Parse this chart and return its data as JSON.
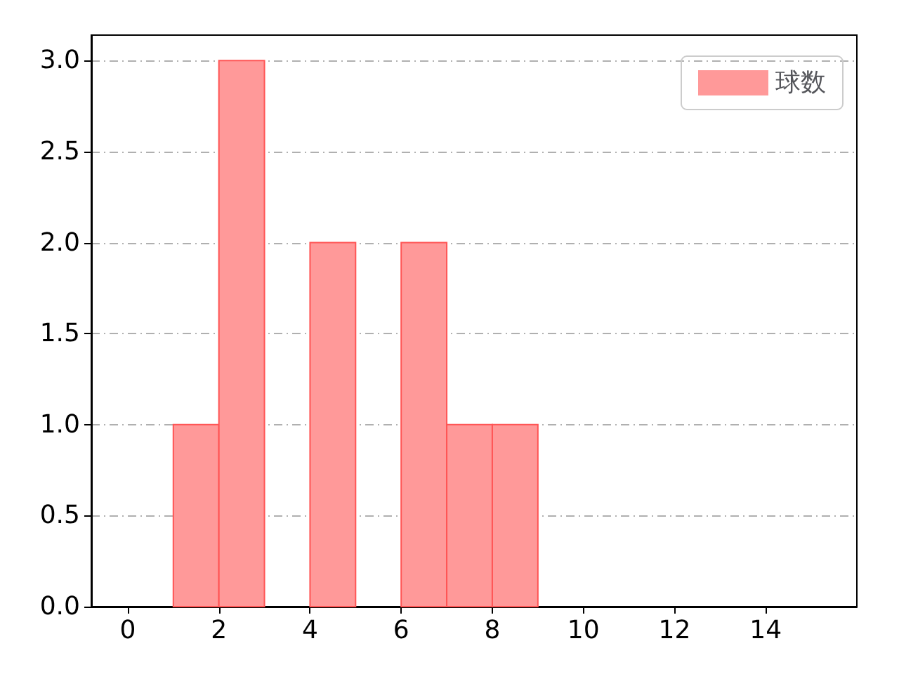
{
  "chart_data": {
    "type": "histogram",
    "bins": [
      1,
      2,
      3,
      4,
      5,
      6,
      7,
      8,
      9
    ],
    "series": [
      {
        "name": "球数",
        "color": "#ff9999",
        "values": [
          1,
          3,
          0,
          2,
          0,
          2,
          1,
          1
        ]
      }
    ],
    "xlim": [
      -0.8,
      16
    ],
    "xticks": [
      0,
      2,
      4,
      6,
      8,
      10,
      12,
      14
    ],
    "ylim": [
      0,
      3.14
    ],
    "yticks": [
      {
        "value": 0,
        "label": "0.0"
      },
      {
        "value": 0.5,
        "label": "0.5"
      },
      {
        "value": 1,
        "label": "1.0"
      },
      {
        "value": 1.5,
        "label": "1.5"
      },
      {
        "value": 2,
        "label": "2.0"
      },
      {
        "value": 2.5,
        "label": "2.5"
      },
      {
        "value": 3,
        "label": "3.0"
      }
    ],
    "grid": "y",
    "legend": "top right"
  }
}
